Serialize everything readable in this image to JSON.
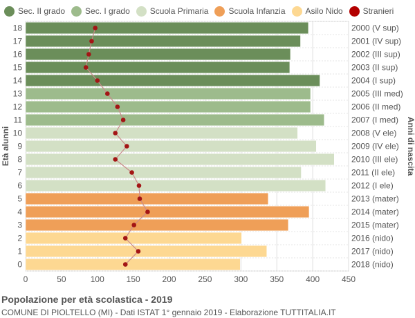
{
  "chart_data": {
    "type": "bar",
    "orientation": "horizontal",
    "title": "Popolazione per età scolastica - 2019",
    "subtitle": "COMUNE DI PIOLTELLO (MI) - Dati ISTAT 1° gennaio 2019 - Elaborazione TUTTITALIA.IT",
    "ylabel_left": "Età alunni",
    "ylabel_right": "Anni di nascita",
    "xlim": [
      0,
      450
    ],
    "xticks": [
      0,
      50,
      100,
      150,
      200,
      250,
      300,
      350,
      400,
      450
    ],
    "grid": true,
    "legend_position": "top",
    "legend": [
      {
        "label": "Sec. II grado",
        "color": "#6b8e5a"
      },
      {
        "label": "Sec. I grado",
        "color": "#9dbb8c"
      },
      {
        "label": "Scuola Primaria",
        "color": "#d3e0c5"
      },
      {
        "label": "Scuola Infanzia",
        "color": "#ef9f58"
      },
      {
        "label": "Asilo Nido",
        "color": "#fdd892"
      },
      {
        "label": "Stranieri",
        "color": "#b30000"
      }
    ],
    "categories": [
      "18",
      "17",
      "16",
      "15",
      "14",
      "13",
      "12",
      "11",
      "10",
      "9",
      "8",
      "7",
      "6",
      "5",
      "4",
      "3",
      "2",
      "1",
      "0"
    ],
    "birth_years": [
      "2000 (V sup)",
      "2001 (IV sup)",
      "2002 (III sup)",
      "2003 (II sup)",
      "2004 (I sup)",
      "2005 (III med)",
      "2006 (II med)",
      "2007 (I med)",
      "2008 (V ele)",
      "2009 (IV ele)",
      "2010 (III ele)",
      "2011 (II ele)",
      "2012 (I ele)",
      "2013 (mater)",
      "2014 (mater)",
      "2015 (mater)",
      "2016 (nido)",
      "2017 (nido)",
      "2018 (nido)"
    ],
    "series": [
      {
        "name": "Popolazione",
        "values": [
          394,
          383,
          369,
          368,
          410,
          397,
          397,
          416,
          379,
          405,
          430,
          384,
          418,
          338,
          395,
          366,
          301,
          336,
          299
        ]
      },
      {
        "name": "Stranieri",
        "values": [
          97,
          92,
          88,
          84,
          100,
          114,
          128,
          136,
          125,
          141,
          125,
          148,
          158,
          159,
          170,
          151,
          139,
          157,
          139
        ]
      }
    ],
    "bar_groups": [
      "Sec. II grado",
      "Sec. II grado",
      "Sec. II grado",
      "Sec. II grado",
      "Sec. II grado",
      "Sec. I grado",
      "Sec. I grado",
      "Sec. I grado",
      "Scuola Primaria",
      "Scuola Primaria",
      "Scuola Primaria",
      "Scuola Primaria",
      "Scuola Primaria",
      "Scuola Infanzia",
      "Scuola Infanzia",
      "Scuola Infanzia",
      "Asilo Nido",
      "Asilo Nido",
      "Asilo Nido"
    ]
  }
}
